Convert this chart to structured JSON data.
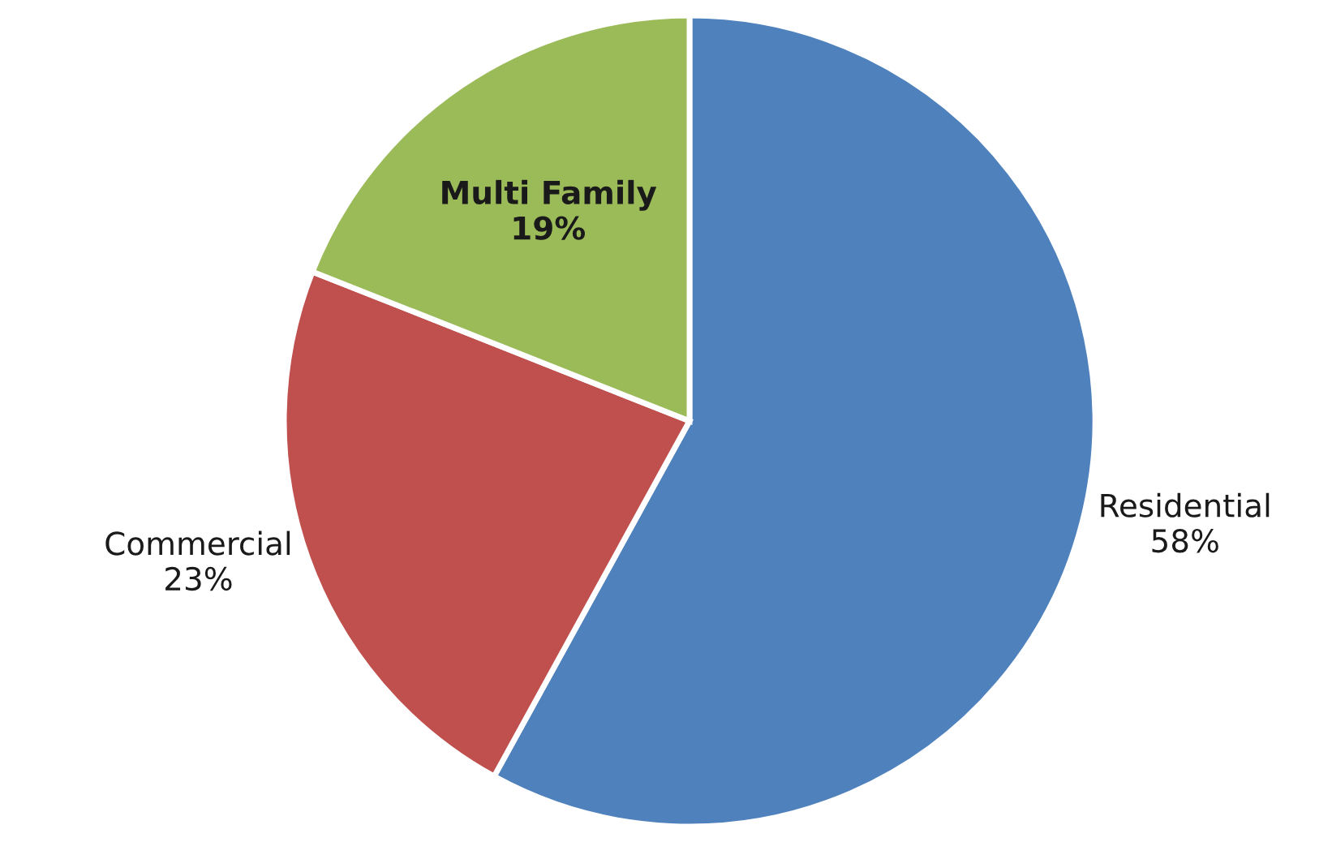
{
  "chart_data": {
    "type": "pie",
    "categories": [
      "Residential",
      "Commercial",
      "Multi Family"
    ],
    "values": [
      58,
      23,
      19
    ],
    "value_labels": [
      "58%",
      "23%",
      "19%"
    ],
    "colors": [
      "#4f81bd",
      "#c0504d",
      "#9bbb59"
    ],
    "legend": false
  }
}
